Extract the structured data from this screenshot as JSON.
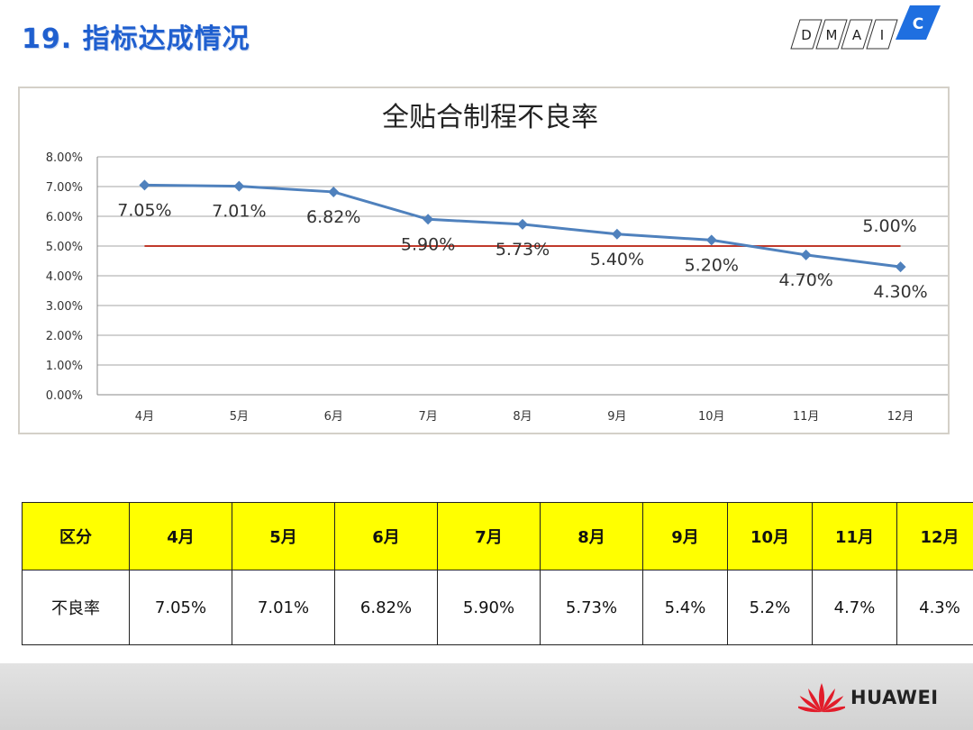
{
  "slide": {
    "title": "19. 指标达成情况",
    "dmaic_letters": [
      "D",
      "M",
      "A",
      "I",
      "C"
    ],
    "brand_name": "HUAWEI"
  },
  "colors": {
    "series": "#4f81bd",
    "target": "#c0392b",
    "grid": "#a6a6a6",
    "header_fill": "#ffff00",
    "dmaic_active": "#1f6fe0"
  },
  "chart_data": {
    "type": "line",
    "title": "全贴合制程不良率",
    "categories": [
      "4月",
      "5月",
      "6月",
      "7月",
      "8月",
      "9月",
      "10月",
      "11月",
      "12月"
    ],
    "series": [
      {
        "values": [
          7.05,
          7.01,
          6.82,
          5.9,
          5.73,
          5.4,
          5.2,
          4.7,
          4.3
        ]
      },
      {
        "values": [
          5.0,
          5.0,
          5.0,
          5.0,
          5.0,
          5.0,
          5.0,
          5.0,
          5.0
        ]
      }
    ],
    "data_labels": [
      "7.05%",
      "7.01%",
      "6.82%",
      "5.90%",
      "5.73%",
      "5.40%",
      "5.20%",
      "4.70%",
      "4.30%"
    ],
    "target_label": "5.00%",
    "ylim": [
      0,
      8
    ],
    "yticks": [
      "0.00%",
      "1.00%",
      "2.00%",
      "3.00%",
      "4.00%",
      "5.00%",
      "6.00%",
      "7.00%",
      "8.00%"
    ],
    "grid": true,
    "legend": "none"
  },
  "table": {
    "header": [
      "区分",
      "4月",
      "5月",
      "6月",
      "7月",
      "8月",
      "9月",
      "10月",
      "11月",
      "12月"
    ],
    "rows": [
      [
        "不良率",
        "7.05%",
        "7.01%",
        "6.82%",
        "5.90%",
        "5.73%",
        "5.4%",
        "5.2%",
        "4.7%",
        "4.3%"
      ]
    ]
  }
}
